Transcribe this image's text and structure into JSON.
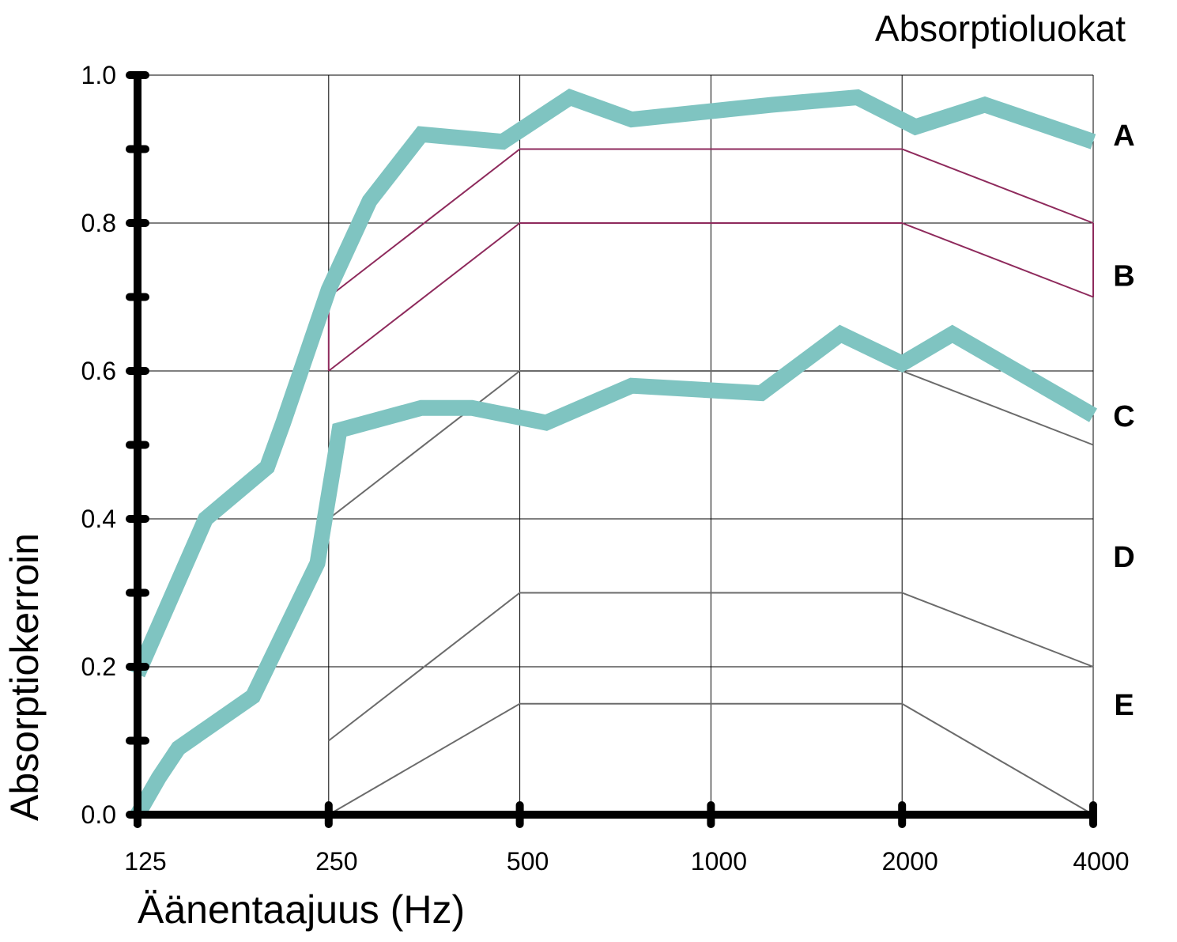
{
  "chart_data": {
    "type": "line",
    "title": "",
    "xlabel": "Äänentaajuus (Hz)",
    "ylabel": "Absorptiokerroin",
    "x_scale": "log2",
    "xlim": [
      125,
      4000
    ],
    "ylim": [
      0,
      1
    ],
    "x_ticks": [
      "125",
      "250",
      "500",
      "1000",
      "2000",
      "4000"
    ],
    "y_ticks": [
      "0.0",
      "0.2",
      "0.4",
      "0.6",
      "0.8",
      "1.0"
    ],
    "grid": true,
    "class_legend": {
      "title": "Absorptioluokat",
      "labels": [
        "A",
        "B",
        "C",
        "D",
        "E"
      ],
      "label_y": [
        0.92,
        0.73,
        0.54,
        0.35,
        0.15
      ]
    },
    "class_boundaries": [
      {
        "x": [
          250,
          500,
          2000,
          4000
        ],
        "y": [
          0.7,
          0.9,
          0.9,
          0.8
        ],
        "color": "#8e2a5c"
      },
      {
        "x": [
          250,
          500,
          2000,
          4000
        ],
        "y": [
          0.6,
          0.8,
          0.8,
          0.7
        ],
        "color": "#8e2a5c"
      },
      {
        "x": [
          250,
          500,
          2000,
          4000
        ],
        "y": [
          0.4,
          0.6,
          0.6,
          0.5
        ],
        "color": "#6b6b6b"
      },
      {
        "x": [
          250,
          500,
          2000,
          4000
        ],
        "y": [
          0.1,
          0.3,
          0.3,
          0.2
        ],
        "color": "#6b6b6b"
      },
      {
        "x": [
          250,
          500,
          2000,
          4000
        ],
        "y": [
          0.0,
          0.15,
          0.15,
          0.0
        ],
        "color": "#6b6b6b"
      }
    ],
    "series": [
      {
        "color": "#7fc4c1",
        "x": [
          125,
          160,
          200,
          212,
          250,
          290,
          350,
          470,
          600,
          750,
          1250,
          1700,
          2100,
          2700,
          4000
        ],
        "y": [
          0.19,
          0.4,
          0.47,
          0.53,
          0.71,
          0.83,
          0.92,
          0.91,
          0.97,
          0.94,
          0.96,
          0.97,
          0.93,
          0.96,
          0.91
        ]
      },
      {
        "color": "#7fc4c1",
        "x": [
          125,
          135,
          145,
          190,
          240,
          260,
          350,
          420,
          550,
          750,
          1200,
          1600,
          2000,
          2400,
          4000
        ],
        "y": [
          0.0,
          0.05,
          0.09,
          0.16,
          0.34,
          0.52,
          0.55,
          0.55,
          0.53,
          0.58,
          0.57,
          0.65,
          0.61,
          0.65,
          0.54
        ]
      }
    ],
    "line_colors": {
      "measured": "#7fc4c1",
      "boundary_ab": "#8e2a5c",
      "boundary_cde": "#6b6b6b",
      "grid": "#000000"
    }
  }
}
